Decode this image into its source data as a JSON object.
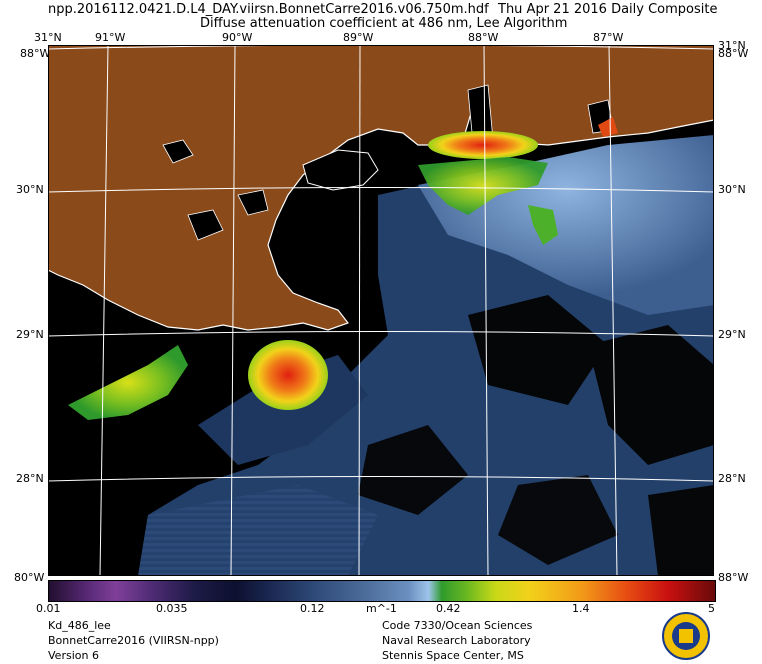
{
  "header": {
    "filename": "npp.2016112.0421.D.L4_DAY.viirsn.BonnetCarre2016.v06.750m.hdf",
    "date": "Thu Apr 21 2016 Daily Composite",
    "title": "Diffuse attenuation coefficient at 486 nm, Lee Algorithm"
  },
  "map": {
    "lon_ticks": [
      "91°W",
      "90°W",
      "89°W",
      "88°W",
      "87°W"
    ],
    "lat_ticks": [
      "31°N",
      "30°N",
      "29°N",
      "28°N"
    ],
    "corner_top": "31°N",
    "corner_left_label": "88°W",
    "corner_bottom_label": "80°W",
    "corner_right_label": "88°W",
    "colors": {
      "land": "#8a4a1a",
      "ocean": "#23406a",
      "no_data": "#000000",
      "grid": "#ffffff"
    }
  },
  "colorbar": {
    "ticks": [
      "0.01",
      "0.035",
      "0.12",
      "m^-1",
      "0.42",
      "1.4",
      "5"
    ],
    "scale": "log"
  },
  "footer": {
    "left": [
      "Kd_486_lee",
      "BonnetCarre2016 (VIIRSN-npp)",
      "Version 6"
    ],
    "right": [
      "Code 7330/Ocean Sciences",
      "Naval Research Laboratory",
      "Stennis Space Center, MS"
    ]
  }
}
